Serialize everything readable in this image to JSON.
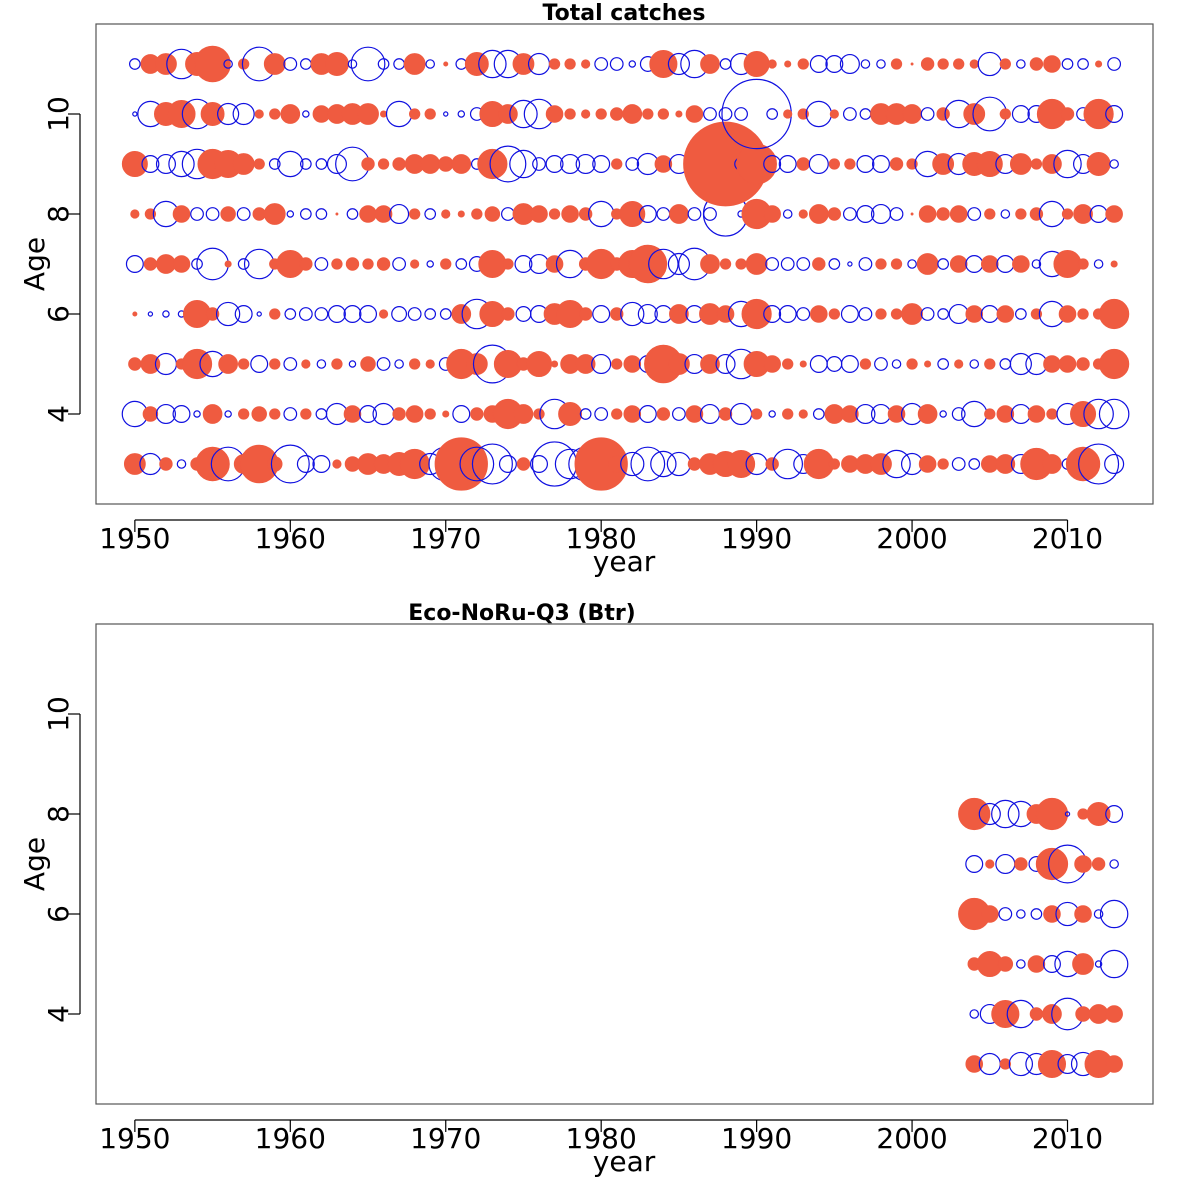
{
  "chart_data": [
    {
      "type": "scatter",
      "subtype": "bubble",
      "title": "Total catches",
      "xlabel": "year",
      "ylabel": "Age",
      "xlim": [
        1947.5,
        2015.5
      ],
      "ylim": [
        2.2,
        11.8
      ],
      "xticks": [
        1950,
        1960,
        1970,
        1980,
        1990,
        2000,
        2010
      ],
      "yticks": [
        4,
        6,
        8,
        10
      ],
      "positive_color": "#ef5b40",
      "negative_color": "#1010e0",
      "encoding": "residuals; filled red = positive, open blue circle = negative, bubble radius proportional to magnitude",
      "years": [
        1950,
        1951,
        1952,
        1953,
        1954,
        1955,
        1956,
        1957,
        1958,
        1959,
        1960,
        1961,
        1962,
        1963,
        1964,
        1965,
        1966,
        1967,
        1968,
        1969,
        1970,
        1971,
        1972,
        1973,
        1974,
        1975,
        1976,
        1977,
        1978,
        1979,
        1980,
        1981,
        1982,
        1983,
        1984,
        1985,
        1986,
        1987,
        1988,
        1989,
        1990,
        1991,
        1992,
        1993,
        1994,
        1995,
        1996,
        1997,
        1998,
        1999,
        2000,
        2001,
        2002,
        2003,
        2004,
        2005,
        2006,
        2007,
        2008,
        2009,
        2010,
        2011,
        2012,
        2013
      ],
      "ages": [
        3,
        4,
        5,
        6,
        7,
        8,
        9,
        10,
        11
      ],
      "residuals": {
        "3": [
          1.0,
          -1.0,
          0.6,
          -0.4,
          0.6,
          1.6,
          -1.6,
          0.9,
          1.8,
          0.7,
          -1.8,
          -0.8,
          -0.8,
          0.4,
          0.7,
          1.0,
          0.9,
          1.1,
          1.4,
          -1.0,
          -1.6,
          2.5,
          -1.6,
          -1.9,
          -0.8,
          0.6,
          -0.8,
          -2.1,
          -1.4,
          -1.6,
          2.5,
          0.8,
          -1.1,
          -1.6,
          -1.2,
          -1.1,
          0.6,
          1.0,
          1.2,
          1.3,
          -1.0,
          0.6,
          -1.4,
          -0.9,
          1.4,
          0.5,
          0.8,
          0.9,
          1.0,
          -1.3,
          -1.0,
          0.8,
          0.5,
          -0.6,
          -0.5,
          0.8,
          0.9,
          -0.9,
          1.5,
          0.9,
          -0.5,
          1.6,
          -1.9,
          -0.9
        ],
        "4": [
          -1.2,
          0.7,
          -0.9,
          -0.8,
          -0.3,
          0.9,
          -0.3,
          0.5,
          0.7,
          0.5,
          -0.6,
          0.5,
          -0.5,
          -1.0,
          0.8,
          -0.8,
          -1.0,
          0.6,
          0.8,
          0.5,
          0.3,
          -0.8,
          0.6,
          0.8,
          1.4,
          0.9,
          0.5,
          -1.4,
          1.1,
          -0.5,
          -0.6,
          0.5,
          0.8,
          -0.8,
          0.6,
          -0.6,
          0.8,
          -0.9,
          0.6,
          -1.0,
          0.5,
          -0.3,
          0.5,
          0.4,
          -0.5,
          0.9,
          0.8,
          -0.9,
          -0.9,
          0.8,
          -1.0,
          0.9,
          -0.3,
          -0.6,
          -1.2,
          0.5,
          0.8,
          -0.9,
          0.8,
          0.5,
          -1.0,
          1.2,
          -1.4,
          -1.4
        ],
        "5": [
          0.6,
          0.9,
          -1.0,
          0.5,
          1.4,
          -1.2,
          0.9,
          0.5,
          -0.8,
          0.5,
          -0.6,
          0.4,
          -0.4,
          0.5,
          -0.3,
          0.7,
          -0.6,
          -0.4,
          0.5,
          0.4,
          -0.6,
          1.4,
          1.0,
          -1.8,
          1.3,
          0.6,
          1.2,
          0.3,
          0.9,
          0.9,
          -0.9,
          0.5,
          0.8,
          -0.8,
          1.8,
          1.0,
          -0.9,
          0.9,
          -0.9,
          -1.4,
          1.2,
          0.8,
          0.5,
          0.3,
          -0.8,
          -0.7,
          -0.8,
          0.5,
          -0.6,
          -0.4,
          0.5,
          0.3,
          -0.5,
          0.4,
          -0.4,
          0.5,
          -0.5,
          -1.0,
          -1.0,
          0.8,
          0.8,
          0.6,
          0.5,
          1.4
        ],
        "6": [
          0.2,
          -0.2,
          -0.3,
          -0.3,
          1.3,
          0.6,
          -1.1,
          -0.8,
          -0.2,
          0.5,
          -0.5,
          -0.6,
          -0.6,
          -0.8,
          -0.8,
          -0.8,
          0.4,
          -0.7,
          -0.6,
          -0.5,
          -0.5,
          0.9,
          -1.4,
          1.2,
          0.6,
          -0.7,
          -0.8,
          1.0,
          1.3,
          0.6,
          -0.8,
          0.6,
          -1.1,
          -0.9,
          -0.8,
          0.9,
          -0.8,
          1.0,
          0.8,
          -1.2,
          1.4,
          -0.8,
          -0.8,
          -0.6,
          0.8,
          0.5,
          -0.8,
          -0.6,
          0.5,
          0.5,
          1.0,
          -0.6,
          -0.5,
          -0.9,
          0.8,
          -0.8,
          0.8,
          -0.5,
          0.5,
          -1.2,
          0.8,
          0.5,
          0.5,
          1.4
        ],
        "7": [
          -0.8,
          0.6,
          0.9,
          0.8,
          -0.5,
          -1.5,
          0.3,
          -0.5,
          -1.4,
          0.5,
          1.3,
          0.6,
          -0.6,
          0.5,
          0.6,
          0.5,
          0.6,
          -0.6,
          0.4,
          -0.3,
          0.5,
          -0.5,
          -0.7,
          1.3,
          0.5,
          -0.8,
          -0.9,
          0.8,
          -1.3,
          0.6,
          1.4,
          0.6,
          1.3,
          1.8,
          -1.4,
          -1.0,
          -1.5,
          0.9,
          0.5,
          0.5,
          1.0,
          -0.6,
          -0.6,
          -0.6,
          0.6,
          -0.5,
          -0.2,
          -0.6,
          0.5,
          0.5,
          -0.4,
          1.0,
          -0.5,
          0.8,
          -0.8,
          0.8,
          -0.8,
          0.8,
          -0.4,
          -1.2,
          1.3,
          0.5,
          -0.4,
          0.3
        ],
        "8": [
          0.4,
          0.5,
          -1.2,
          0.8,
          -0.6,
          -0.6,
          0.7,
          -0.6,
          0.6,
          1.0,
          -0.3,
          -0.5,
          -0.5,
          0.1,
          -0.5,
          0.8,
          0.8,
          -0.9,
          0.5,
          -0.5,
          0.4,
          0.3,
          0.5,
          0.7,
          -0.6,
          1.0,
          0.8,
          0.5,
          0.8,
          0.6,
          -1.2,
          0.5,
          1.2,
          -0.8,
          -0.6,
          0.9,
          -0.6,
          -0.6,
          -2.1,
          -0.3,
          1.4,
          0.8,
          -0.4,
          0.4,
          0.9,
          0.6,
          -0.6,
          -0.8,
          -0.9,
          -0.6,
          0.1,
          0.8,
          0.6,
          0.8,
          -0.6,
          0.5,
          -0.4,
          0.5,
          0.6,
          -1.2,
          0.5,
          0.9,
          -0.8,
          0.8
        ],
        "9": [
          1.2,
          -0.8,
          -0.9,
          -1.2,
          -1.4,
          1.4,
          1.3,
          1.0,
          0.5,
          -0.5,
          -1.2,
          -0.5,
          -0.5,
          -0.9,
          -1.6,
          0.6,
          0.5,
          0.6,
          0.9,
          0.9,
          0.7,
          0.9,
          -0.5,
          1.4,
          -1.7,
          -1.3,
          -0.6,
          -0.8,
          -0.9,
          -0.9,
          -0.8,
          0.5,
          -0.6,
          -1.0,
          0.8,
          -0.9,
          -0.9,
          -0.8,
          4.0,
          -0.6,
          1.9,
          -0.8,
          -0.8,
          0.6,
          -0.9,
          0.5,
          0.5,
          -0.8,
          -0.8,
          0.6,
          0.5,
          -1.2,
          1.0,
          -1.0,
          1.1,
          1.2,
          -0.9,
          1.0,
          0.5,
          0.9,
          -1.3,
          -0.9,
          1.1,
          -0.4
        ],
        "10": [
          -0.2,
          -1.2,
          1.1,
          1.3,
          -1.4,
          1.1,
          -1.0,
          -1.0,
          0.4,
          0.5,
          0.9,
          -0.3,
          0.8,
          0.9,
          1.0,
          1.0,
          0.3,
          -1.2,
          0.5,
          0.5,
          -0.2,
          -0.3,
          -0.6,
          1.2,
          0.9,
          -1.3,
          -1.4,
          0.8,
          0.5,
          0.4,
          0.5,
          0.6,
          0.9,
          0.5,
          0.5,
          0.3,
          0.8,
          -0.6,
          -0.6,
          -0.6,
          -3.3,
          -0.5,
          0.4,
          0.5,
          -1.2,
          0.4,
          -0.6,
          -0.5,
          1.0,
          1.0,
          0.9,
          -0.6,
          0.6,
          -1.3,
          1.0,
          -1.6,
          0.5,
          -0.8,
          -0.8,
          1.4,
          0.6,
          -0.6,
          1.4,
          -0.8
        ],
        "11": [
          -0.5,
          0.9,
          1.0,
          -1.4,
          1.1,
          1.7,
          -0.4,
          0.5,
          -1.6,
          1.0,
          -0.6,
          -0.5,
          1.0,
          1.1,
          -0.4,
          -1.6,
          -0.5,
          -0.5,
          1.0,
          -0.4,
          0.2,
          -0.5,
          1.1,
          -1.3,
          -1.3,
          1.0,
          -1.0,
          0.5,
          0.5,
          0.4,
          -0.6,
          -0.6,
          -0.3,
          -0.7,
          1.3,
          -1.0,
          -1.3,
          0.9,
          -0.5,
          -1.0,
          1.2,
          0.4,
          0.3,
          0.5,
          -0.8,
          -0.8,
          -0.9,
          -0.4,
          -0.4,
          0.5,
          0.1,
          0.6,
          0.5,
          0.5,
          0.4,
          -1.1,
          0.5,
          -0.4,
          0.6,
          0.8,
          -0.5,
          -0.5,
          0.3,
          -0.6
        ]
      }
    },
    {
      "type": "scatter",
      "subtype": "bubble",
      "title": "Eco-NoRu-Q3 (Btr)",
      "xlabel": "year",
      "ylabel": "Age",
      "xlim": [
        1947.5,
        2015.5
      ],
      "ylim": [
        2.2,
        11.8
      ],
      "xticks": [
        1950,
        1960,
        1970,
        1980,
        1990,
        2000,
        2010
      ],
      "yticks": [
        4,
        6,
        8,
        10
      ],
      "positive_color": "#ef5b40",
      "negative_color": "#1010e0",
      "encoding": "residuals; filled red = positive, open blue circle = negative, bubble radius proportional to magnitude",
      "years": [
        2004,
        2005,
        2006,
        2007,
        2008,
        2009,
        2010,
        2011,
        2012,
        2013
      ],
      "ages": [
        3,
        4,
        5,
        6,
        7,
        8
      ],
      "residuals": {
        "3": [
          0.8,
          -1.0,
          0.5,
          -1.1,
          -1.0,
          1.3,
          -0.9,
          -1.1,
          1.3,
          0.8
        ],
        "4": [
          -0.4,
          -0.9,
          1.3,
          -1.3,
          0.6,
          0.9,
          -1.5,
          0.7,
          0.9,
          0.8
        ],
        "5": [
          0.6,
          1.2,
          0.7,
          -0.4,
          0.8,
          -0.8,
          -1.2,
          1.0,
          -0.3,
          -1.3
        ],
        "6": [
          1.5,
          0.8,
          -0.6,
          -0.4,
          -0.5,
          0.8,
          -1.1,
          0.8,
          -0.4,
          -1.3
        ],
        "7": [
          -0.8,
          0.4,
          -0.9,
          0.6,
          -0.7,
          1.5,
          -1.8,
          0.8,
          0.6,
          -0.4
        ],
        "8": [
          1.5,
          -1.0,
          -1.3,
          -1.2,
          0.9,
          1.5,
          -0.2,
          0.5,
          1.1,
          -0.8
        ]
      }
    }
  ]
}
